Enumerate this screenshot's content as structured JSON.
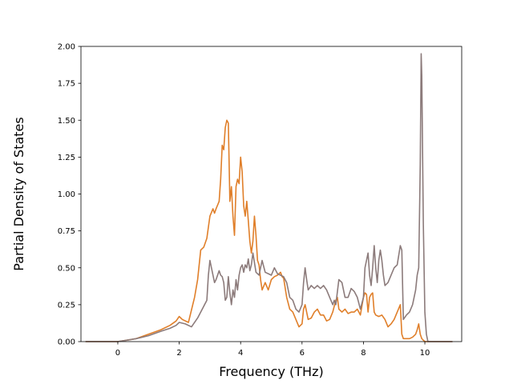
{
  "chart_data": {
    "type": "line",
    "title": "",
    "xlabel": "Frequency (THz)",
    "ylabel": "Partial Density of States",
    "xlim": [
      -1.2,
      11.2
    ],
    "ylim": [
      0,
      2.0
    ],
    "xticks": [
      0,
      2,
      4,
      6,
      8,
      10
    ],
    "xtick_labels": [
      "0",
      "2",
      "4",
      "6",
      "8",
      "10"
    ],
    "yticks": [
      0,
      0.25,
      0.5,
      0.75,
      1.0,
      1.25,
      1.5,
      1.75,
      2.0
    ],
    "ytick_labels": [
      "0.00",
      "0.25",
      "0.50",
      "0.75",
      "1.00",
      "1.25",
      "1.50",
      "1.75",
      "2.00"
    ],
    "grid": false,
    "series": [
      {
        "color": "#e07f2a",
        "x": [
          -1.05,
          0.0,
          0.3,
          0.6,
          1.0,
          1.4,
          1.7,
          1.9,
          2.0,
          2.1,
          2.3,
          2.5,
          2.6,
          2.7,
          2.8,
          2.9,
          3.0,
          3.1,
          3.15,
          3.2,
          3.3,
          3.35,
          3.4,
          3.45,
          3.5,
          3.55,
          3.6,
          3.65,
          3.7,
          3.75,
          3.8,
          3.85,
          3.9,
          3.95,
          4.0,
          4.05,
          4.1,
          4.15,
          4.2,
          4.25,
          4.3,
          4.35,
          4.4,
          4.45,
          4.5,
          4.55,
          4.6,
          4.65,
          4.7,
          4.8,
          4.9,
          5.0,
          5.1,
          5.2,
          5.3,
          5.35,
          5.4,
          5.5,
          5.6,
          5.7,
          5.8,
          5.9,
          6.0,
          6.05,
          6.1,
          6.2,
          6.3,
          6.4,
          6.5,
          6.6,
          6.7,
          6.8,
          6.9,
          7.0,
          7.1,
          7.15,
          7.2,
          7.3,
          7.4,
          7.5,
          7.6,
          7.7,
          7.8,
          7.9,
          8.0,
          8.05,
          8.1,
          8.15,
          8.2,
          8.25,
          8.3,
          8.35,
          8.4,
          8.5,
          8.6,
          8.7,
          8.8,
          8.9,
          9.0,
          9.1,
          9.2,
          9.25,
          9.3,
          9.4,
          9.5,
          9.6,
          9.7,
          9.75,
          9.8,
          9.85,
          9.9,
          9.95,
          10.0,
          10.5,
          10.9
        ],
        "y": [
          0.0,
          0.0,
          0.01,
          0.02,
          0.05,
          0.08,
          0.11,
          0.14,
          0.17,
          0.15,
          0.13,
          0.3,
          0.42,
          0.62,
          0.64,
          0.7,
          0.85,
          0.9,
          0.87,
          0.9,
          0.95,
          1.1,
          1.33,
          1.3,
          1.45,
          1.5,
          1.48,
          0.95,
          1.05,
          0.85,
          0.72,
          1.05,
          1.1,
          1.07,
          1.25,
          1.15,
          0.92,
          0.85,
          0.95,
          0.82,
          0.68,
          0.6,
          0.68,
          0.85,
          0.72,
          0.55,
          0.52,
          0.42,
          0.35,
          0.4,
          0.35,
          0.42,
          0.44,
          0.45,
          0.47,
          0.44,
          0.43,
          0.3,
          0.22,
          0.2,
          0.15,
          0.1,
          0.12,
          0.22,
          0.25,
          0.15,
          0.16,
          0.2,
          0.22,
          0.18,
          0.18,
          0.14,
          0.15,
          0.2,
          0.28,
          0.3,
          0.22,
          0.2,
          0.22,
          0.19,
          0.2,
          0.2,
          0.22,
          0.18,
          0.3,
          0.33,
          0.32,
          0.2,
          0.3,
          0.32,
          0.33,
          0.2,
          0.18,
          0.17,
          0.18,
          0.15,
          0.1,
          0.12,
          0.15,
          0.2,
          0.25,
          0.05,
          0.02,
          0.02,
          0.02,
          0.03,
          0.05,
          0.08,
          0.12,
          0.05,
          0.02,
          0.01,
          0.0,
          0.0,
          0.0
        ]
      },
      {
        "color": "#8c7b7b",
        "x": [
          -1.05,
          0.0,
          0.3,
          0.6,
          1.0,
          1.4,
          1.7,
          1.9,
          2.0,
          2.2,
          2.4,
          2.6,
          2.8,
          2.9,
          2.95,
          3.0,
          3.05,
          3.1,
          3.15,
          3.2,
          3.3,
          3.35,
          3.4,
          3.45,
          3.5,
          3.55,
          3.6,
          3.65,
          3.7,
          3.75,
          3.8,
          3.85,
          3.9,
          3.95,
          4.0,
          4.05,
          4.1,
          4.15,
          4.2,
          4.25,
          4.3,
          4.35,
          4.4,
          4.5,
          4.6,
          4.7,
          4.8,
          4.9,
          5.0,
          5.1,
          5.2,
          5.3,
          5.4,
          5.5,
          5.6,
          5.7,
          5.8,
          5.9,
          6.0,
          6.05,
          6.1,
          6.15,
          6.2,
          6.3,
          6.4,
          6.5,
          6.6,
          6.7,
          6.8,
          6.9,
          7.0,
          7.05,
          7.1,
          7.2,
          7.3,
          7.4,
          7.5,
          7.6,
          7.7,
          7.8,
          7.9,
          8.0,
          8.05,
          8.1,
          8.15,
          8.2,
          8.25,
          8.3,
          8.35,
          8.4,
          8.45,
          8.5,
          8.55,
          8.6,
          8.65,
          8.7,
          8.8,
          8.9,
          9.0,
          9.1,
          9.2,
          9.25,
          9.3,
          9.4,
          9.5,
          9.6,
          9.7,
          9.75,
          9.8,
          9.85,
          9.88,
          9.9,
          9.95,
          10.0,
          10.05,
          10.1,
          10.5,
          10.9
        ],
        "y": [
          0.0,
          0.0,
          0.01,
          0.02,
          0.04,
          0.07,
          0.09,
          0.11,
          0.13,
          0.12,
          0.1,
          0.16,
          0.24,
          0.28,
          0.45,
          0.55,
          0.5,
          0.45,
          0.4,
          0.42,
          0.48,
          0.45,
          0.44,
          0.4,
          0.28,
          0.3,
          0.44,
          0.33,
          0.25,
          0.35,
          0.3,
          0.42,
          0.35,
          0.45,
          0.5,
          0.52,
          0.47,
          0.52,
          0.5,
          0.56,
          0.48,
          0.52,
          0.6,
          0.47,
          0.45,
          0.55,
          0.47,
          0.46,
          0.45,
          0.5,
          0.46,
          0.45,
          0.44,
          0.4,
          0.3,
          0.28,
          0.22,
          0.2,
          0.25,
          0.4,
          0.5,
          0.42,
          0.35,
          0.38,
          0.36,
          0.38,
          0.36,
          0.38,
          0.35,
          0.3,
          0.25,
          0.28,
          0.25,
          0.42,
          0.4,
          0.3,
          0.3,
          0.36,
          0.34,
          0.3,
          0.22,
          0.3,
          0.5,
          0.55,
          0.6,
          0.45,
          0.38,
          0.5,
          0.65,
          0.5,
          0.4,
          0.55,
          0.62,
          0.55,
          0.45,
          0.38,
          0.4,
          0.45,
          0.5,
          0.52,
          0.65,
          0.62,
          0.15,
          0.18,
          0.2,
          0.25,
          0.35,
          0.45,
          0.5,
          1.2,
          1.95,
          1.8,
          0.8,
          0.2,
          0.05,
          0.0,
          0.0,
          0.0
        ]
      }
    ]
  }
}
